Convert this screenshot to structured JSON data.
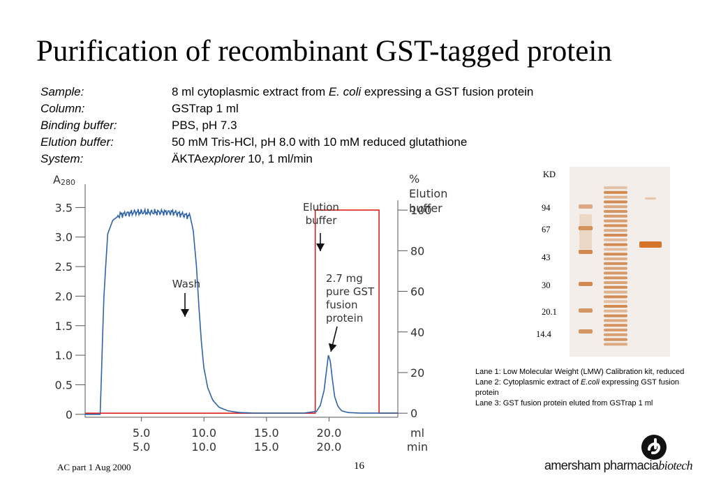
{
  "slide": {
    "title": "Purification of recombinant GST-tagged protein",
    "footer_left": "AC part 1 Aug 2000",
    "page_number": "16",
    "brand": {
      "part1": "amersham pharmacia",
      "part2": "biotech"
    }
  },
  "params": [
    {
      "label": "Sample:",
      "value_pre": "8 ml cytoplasmic extract from ",
      "value_italic": "E. coli",
      "value_post": " expressing a GST fusion protein"
    },
    {
      "label": "Column:",
      "value_pre": "GSTrap 1 ml",
      "value_italic": "",
      "value_post": ""
    },
    {
      "label": "Binding buffer:",
      "value_pre": "PBS, pH 7.3",
      "value_italic": "",
      "value_post": ""
    },
    {
      "label": "Elution buffer:",
      "value_pre": "50 mM Tris-HCl, pH 8.0 with 10 mM reduced glutathione",
      "value_italic": "",
      "value_post": ""
    },
    {
      "label": "System:",
      "value_pre": "ÄKTA",
      "value_italic": "explorer",
      "value_post": " 10, 1 ml/min"
    }
  ],
  "chart_data": {
    "type": "line",
    "title": "",
    "ylabel": "A280",
    "y2label": [
      "%",
      "Elution",
      "buffer"
    ],
    "xlabels": [
      "ml",
      "min"
    ],
    "xlim": [
      0.5,
      25.5
    ],
    "ylim": [
      -0.05,
      3.8
    ],
    "y2lim": [
      -2,
      110
    ],
    "x_ticks_ml": [
      "5.0",
      "10.0",
      "15.0",
      "20.0"
    ],
    "x_ticks_min": [
      "5.0",
      "10.0",
      "15.0",
      "20.0"
    ],
    "y_ticks": [
      "0",
      "0.5",
      "1.0",
      "1.5",
      "2.0",
      "2.5",
      "3.0",
      "3.5"
    ],
    "y2_ticks": [
      "0",
      "20",
      "40",
      "60",
      "80",
      "100"
    ],
    "colors": {
      "a280": "#2e63a8",
      "elution": "#e0201c",
      "axis": "#555555"
    },
    "series": [
      {
        "name": "",
        "axis": "left",
        "x": [
          0.5,
          1.2,
          1.7,
          2.0,
          2.3,
          2.7,
          3.3,
          4.5,
          6.0,
          7.5,
          8.9,
          9.15,
          9.4,
          9.6,
          9.8,
          10.0,
          10.3,
          10.7,
          11.2,
          11.9,
          12.8,
          14.0,
          16.0,
          18.0,
          19.0,
          19.3,
          19.6,
          19.8,
          19.95,
          20.1,
          20.25,
          20.45,
          20.7,
          21.0,
          21.5,
          22.5,
          24.0,
          25.5
        ],
        "y": [
          0.0,
          0.0,
          0.0,
          2.0,
          3.05,
          3.28,
          3.38,
          3.42,
          3.42,
          3.42,
          3.35,
          3.1,
          2.5,
          1.8,
          1.2,
          0.78,
          0.45,
          0.24,
          0.12,
          0.06,
          0.03,
          0.02,
          0.02,
          0.02,
          0.05,
          0.15,
          0.4,
          0.75,
          1.0,
          0.9,
          0.62,
          0.3,
          0.14,
          0.06,
          0.03,
          0.02,
          0.02,
          0.02
        ]
      },
      {
        "name": "",
        "axis": "right",
        "x": [
          0.5,
          18.9,
          18.9,
          24.0,
          24.0,
          25.5
        ],
        "y": [
          0,
          0,
          100,
          100,
          0,
          0
        ]
      }
    ],
    "annotations": [
      {
        "id": "wash",
        "text": [
          "Wash"
        ],
        "x": 6.7,
        "y": 2.2
      },
      {
        "id": "elution",
        "text": [
          "Elution",
          "buffer"
        ],
        "x": 19.0,
        "y": 3.3
      },
      {
        "id": "protein",
        "text": [
          "2.7 mg",
          "pure GST",
          "fusion",
          "protein"
        ],
        "x": 19.6,
        "y": 1.1
      }
    ]
  },
  "gel": {
    "unit": "KD",
    "markers": [
      {
        "label": "94",
        "kd": 94
      },
      {
        "label": "67",
        "kd": 67
      },
      {
        "label": "43",
        "kd": 43
      },
      {
        "label": "30",
        "kd": 30
      },
      {
        "label": "20.1",
        "kd": 20.1
      },
      {
        "label": "14.4",
        "kd": 14.4
      }
    ],
    "lanes": [
      "Lane 1",
      "Lane 2",
      "Lane 3"
    ]
  },
  "legend": {
    "line1": "Lane 1: Low Molecular Weight (LMW) Calibration kit, reduced",
    "line2_pre": "Lane 2: Cytoplasmic extract of ",
    "line2_italic": "E.coli",
    "line2_post": " expressing GST fusion protein",
    "line3": "Lane 3: GST fusion protein eluted from GSTrap 1 ml"
  }
}
